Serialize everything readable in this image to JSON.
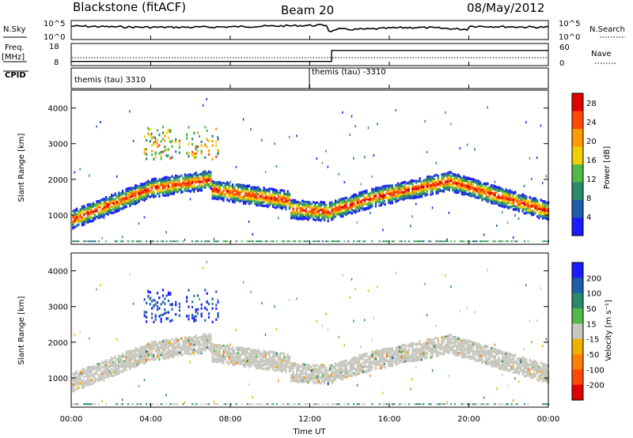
{
  "header": {
    "station": "Blackstone (fitACF)",
    "beam": "Beam 20",
    "date": "08/May/2012"
  },
  "strips": {
    "nsky_label": "N.Sky",
    "nsearch_label": "N.Search",
    "freq_label": "Freq.",
    "freq_unit": "[MHz]",
    "nave_label": "Nave",
    "cpid_label": "CPID",
    "count_ticks": [
      "10^5",
      "10^0"
    ],
    "freq_ticks": [
      18,
      8
    ],
    "nave_ticks": [
      60,
      0
    ],
    "cpid_segments": [
      {
        "start_hour": 0,
        "label": "themis (tau) 3310"
      },
      {
        "start_hour": 12,
        "label": "themis (tau) -3310"
      }
    ],
    "freq_steps": [
      {
        "from_hour": 0,
        "to_hour": 13.1,
        "nave": 10
      },
      {
        "from_hour": 13.1,
        "to_hour": 24,
        "nave": 42
      }
    ]
  },
  "chart_data": [
    {
      "type": "heatmap",
      "name": "power",
      "ylabel": "Slant Range [km]",
      "y_ticks": [
        1000,
        2000,
        3000,
        4000
      ],
      "ylim": [
        180,
        4500
      ],
      "xlim": [
        0,
        24
      ],
      "colorbar_label": "Power [dB]",
      "colorbar_ticks": [
        4,
        8,
        12,
        16,
        20,
        24,
        28
      ],
      "colorbar_range": [
        0,
        30
      ],
      "colors": [
        "#1a1aff",
        "#1e5ea8",
        "#2a8a6a",
        "#52b848",
        "#f0d000",
        "#ff9a00",
        "#ff4a00",
        "#e00000"
      ]
    },
    {
      "type": "heatmap",
      "name": "velocity",
      "ylabel": "Slant Range [km]",
      "y_ticks": [
        1000,
        2000,
        3000,
        4000
      ],
      "ylim": [
        180,
        4500
      ],
      "xlim": [
        0,
        24
      ],
      "xlabel": "Time UT",
      "x_ticks": [
        "00:00",
        "04:00",
        "08:00",
        "12:00",
        "16:00",
        "20:00",
        "00:00"
      ],
      "colorbar_label": "Velocity [m s⁻¹]",
      "colorbar_ticks": [
        200,
        100,
        50,
        15,
        -15,
        -50,
        -100,
        -200
      ],
      "colors": [
        "#1a1aff",
        "#1e5ea8",
        "#2a8a6a",
        "#52b848",
        "#c8c8c0",
        "#f0b000",
        "#ff8000",
        "#ff4a00",
        "#e00000"
      ]
    }
  ]
}
